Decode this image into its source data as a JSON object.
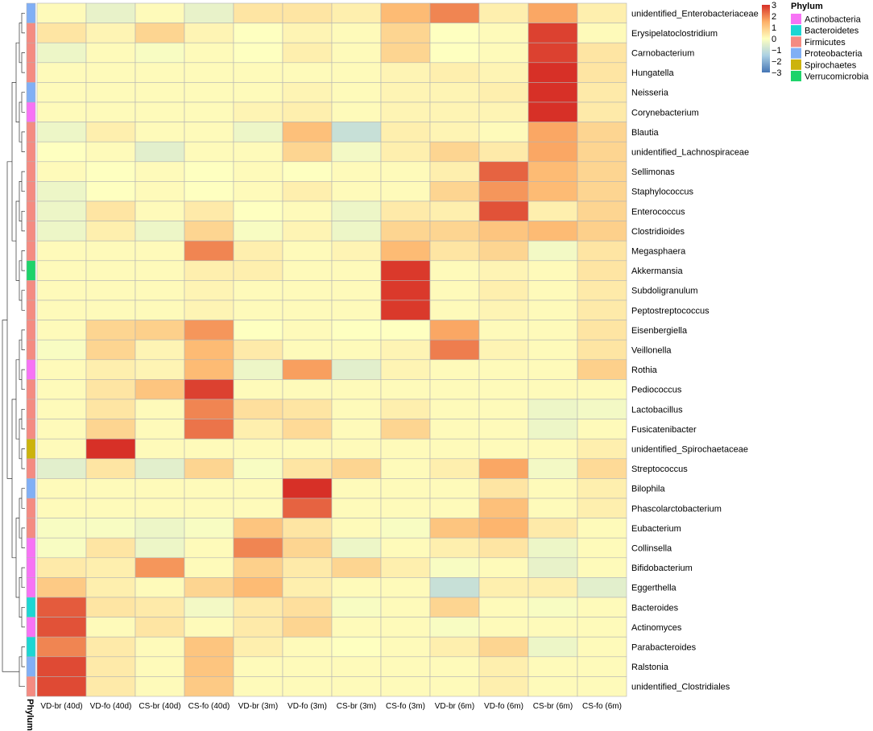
{
  "chart_data": {
    "type": "heatmap",
    "columns": [
      "VD-br (40d)",
      "VD-fo (40d)",
      "CS-br (40d)",
      "CS-fo (40d)",
      "VD-br (3m)",
      "VD-fo (3m)",
      "CS-br (3m)",
      "CS-fo (3m)",
      "VD-br (6m)",
      "VD-fo (6m)",
      "CS-br (6m)",
      "CS-fo (6m)"
    ],
    "rows": [
      {
        "name": "unidentified_Enterobacteriaceae",
        "phylum": "Proteobacteria",
        "values": [
          0.1,
          -0.4,
          0.1,
          -0.4,
          0.5,
          0.5,
          0.3,
          1.3,
          2.0,
          0.3,
          1.6,
          0.3
        ]
      },
      {
        "name": "Erysipelatoclostridium",
        "phylum": "Firmicutes",
        "values": [
          0.5,
          0.2,
          0.8,
          0.2,
          0.0,
          0.2,
          0.1,
          0.8,
          0.0,
          0.1,
          2.8,
          0.1
        ]
      },
      {
        "name": "Carnobacterium",
        "phylum": "Firmicutes",
        "values": [
          -0.3,
          0.1,
          -0.1,
          0.1,
          0.0,
          0.3,
          0.1,
          0.8,
          0.0,
          0.1,
          2.8,
          0.5
        ]
      },
      {
        "name": "Hungatella",
        "phylum": "Firmicutes",
        "values": [
          0.1,
          0.1,
          0.1,
          0.1,
          0.1,
          0.1,
          0.1,
          0.2,
          0.3,
          0.2,
          3.0,
          0.5
        ]
      },
      {
        "name": "Neisseria",
        "phylum": "Proteobacteria",
        "values": [
          0.1,
          0.1,
          0.1,
          0.1,
          0.1,
          0.2,
          0.1,
          0.2,
          0.2,
          0.3,
          3.0,
          0.4
        ]
      },
      {
        "name": "Corynebacterium",
        "phylum": "Actinobacteria",
        "values": [
          0.1,
          0.1,
          0.1,
          0.1,
          0.2,
          0.3,
          0.1,
          0.2,
          0.2,
          0.2,
          3.0,
          0.4
        ]
      },
      {
        "name": "Blautia",
        "phylum": "Firmicutes",
        "values": [
          -0.3,
          0.3,
          0.1,
          0.1,
          -0.3,
          1.2,
          -1.0,
          0.3,
          0.2,
          0.1,
          1.6,
          0.8
        ]
      },
      {
        "name": "unidentified_Lachnospiraceae",
        "phylum": "Firmicutes",
        "values": [
          0.0,
          0.1,
          -0.5,
          0.1,
          0.1,
          0.8,
          -0.2,
          0.3,
          0.8,
          0.4,
          1.6,
          0.8
        ]
      },
      {
        "name": "Sellimonas",
        "phylum": "Firmicutes",
        "values": [
          0.1,
          0.0,
          0.1,
          0.0,
          0.1,
          0.0,
          0.1,
          0.1,
          0.3,
          2.4,
          1.3,
          0.8
        ]
      },
      {
        "name": "Staphylococcus",
        "phylum": "Firmicutes",
        "values": [
          -0.3,
          0.0,
          0.1,
          0.0,
          0.1,
          0.3,
          0.1,
          0.1,
          0.8,
          1.8,
          1.3,
          0.8
        ]
      },
      {
        "name": "Enterococcus",
        "phylum": "Firmicutes",
        "values": [
          -0.3,
          0.5,
          0.1,
          0.4,
          0.0,
          0.1,
          -0.3,
          0.4,
          0.3,
          2.6,
          0.3,
          0.8
        ]
      },
      {
        "name": "Clostridioides",
        "phylum": "Firmicutes",
        "values": [
          -0.3,
          0.3,
          -0.3,
          0.8,
          -0.1,
          0.2,
          -0.3,
          0.8,
          0.8,
          1.1,
          1.3,
          0.9
        ]
      },
      {
        "name": "Megasphaera",
        "phylum": "Firmicutes",
        "values": [
          0.1,
          0.1,
          0.1,
          2.0,
          0.3,
          0.1,
          0.2,
          1.3,
          0.5,
          0.8,
          -0.2,
          0.5
        ]
      },
      {
        "name": "Akkermansia",
        "phylum": "Verrucomicrobia",
        "values": [
          0.1,
          0.1,
          0.1,
          0.3,
          0.3,
          0.1,
          0.1,
          2.9,
          0.1,
          0.2,
          0.1,
          0.5
        ]
      },
      {
        "name": "Subdoligranulum",
        "phylum": "Firmicutes",
        "values": [
          0.1,
          0.1,
          0.1,
          0.2,
          0.1,
          0.1,
          0.1,
          2.9,
          0.1,
          0.3,
          0.1,
          0.4
        ]
      },
      {
        "name": "Peptostreptococcus",
        "phylum": "Firmicutes",
        "values": [
          0.1,
          0.1,
          0.1,
          0.2,
          0.1,
          0.1,
          0.1,
          2.9,
          0.1,
          0.2,
          0.1,
          0.4
        ]
      },
      {
        "name": "Eisenbergiella",
        "phylum": "Firmicutes",
        "values": [
          0.1,
          0.8,
          0.9,
          1.8,
          0.0,
          0.1,
          0.0,
          0.0,
          1.6,
          0.1,
          0.1,
          0.5
        ]
      },
      {
        "name": "Veillonella",
        "phylum": "Firmicutes",
        "values": [
          -0.1,
          0.8,
          0.2,
          1.3,
          0.4,
          0.1,
          0.1,
          0.2,
          2.1,
          0.2,
          0.1,
          0.5
        ]
      },
      {
        "name": "Rothia",
        "phylum": "Actinobacteria",
        "values": [
          0.1,
          0.3,
          0.2,
          1.3,
          -0.3,
          1.7,
          -0.5,
          0.2,
          0.1,
          0.1,
          0.1,
          0.9
        ]
      },
      {
        "name": "Pediococcus",
        "phylum": "Firmicutes",
        "values": [
          0.1,
          0.5,
          1.1,
          2.8,
          0.1,
          0.1,
          0.1,
          0.1,
          0.1,
          0.1,
          0.1,
          0.1
        ]
      },
      {
        "name": "Lactobacillus",
        "phylum": "Firmicutes",
        "values": [
          0.1,
          0.5,
          0.1,
          2.0,
          0.6,
          0.5,
          0.1,
          0.3,
          0.1,
          0.1,
          -0.3,
          -0.2
        ]
      },
      {
        "name": "Fusicatenibacter",
        "phylum": "Firmicutes",
        "values": [
          0.1,
          0.8,
          0.1,
          2.2,
          0.3,
          0.7,
          0.1,
          0.8,
          0.1,
          0.1,
          -0.3,
          0.1
        ]
      },
      {
        "name": "unidentified_Spirochaetaceae",
        "phylum": "Spirochaetes",
        "values": [
          0.1,
          3.0,
          0.1,
          0.1,
          0.1,
          0.1,
          0.1,
          0.1,
          0.1,
          0.1,
          0.1,
          0.3
        ]
      },
      {
        "name": "Streptococcus",
        "phylum": "Firmicutes",
        "values": [
          -0.5,
          0.5,
          -0.5,
          0.8,
          -0.1,
          0.5,
          0.8,
          0.1,
          0.3,
          1.6,
          -0.2,
          0.7
        ]
      },
      {
        "name": "Bilophila",
        "phylum": "Proteobacteria",
        "values": [
          0.1,
          0.1,
          0.1,
          0.1,
          0.1,
          3.0,
          0.1,
          0.1,
          0.1,
          0.5,
          0.1,
          0.3
        ]
      },
      {
        "name": "Phascolarctobacterium",
        "phylum": "Firmicutes",
        "values": [
          0.1,
          0.1,
          0.1,
          0.1,
          0.1,
          2.4,
          0.1,
          0.1,
          0.1,
          1.2,
          0.1,
          0.3
        ]
      },
      {
        "name": "Eubacterium",
        "phylum": "Firmicutes",
        "values": [
          -0.1,
          -0.1,
          -0.3,
          -0.1,
          1.1,
          0.5,
          0.1,
          -0.1,
          1.1,
          1.4,
          0.4,
          0.1
        ]
      },
      {
        "name": "Collinsella",
        "phylum": "Actinobacteria",
        "values": [
          -0.1,
          0.5,
          -0.3,
          0.1,
          2.0,
          0.8,
          -0.3,
          0.1,
          0.3,
          0.5,
          -0.3,
          0.1
        ]
      },
      {
        "name": "Bifidobacterium",
        "phylum": "Actinobacteria",
        "values": [
          0.4,
          0.3,
          1.8,
          0.1,
          0.9,
          0.4,
          0.8,
          0.3,
          -0.1,
          0.1,
          -0.4,
          0.1
        ]
      },
      {
        "name": "Eggerthella",
        "phylum": "Actinobacteria",
        "values": [
          1.0,
          0.3,
          0.1,
          0.8,
          1.3,
          0.3,
          0.1,
          0.1,
          -1.0,
          0.3,
          0.3,
          -0.5
        ]
      },
      {
        "name": "Bacteroides",
        "phylum": "Bacteroidetes",
        "values": [
          2.5,
          0.5,
          0.4,
          -0.2,
          0.4,
          0.6,
          -0.1,
          0.1,
          0.8,
          0.1,
          -0.1,
          0.1
        ]
      },
      {
        "name": "Actinomyces",
        "phylum": "Actinobacteria",
        "values": [
          2.6,
          0.1,
          0.5,
          0.1,
          0.4,
          0.8,
          0.1,
          0.1,
          -0.1,
          0.1,
          0.1,
          0.1
        ]
      },
      {
        "name": "Parabacteroides",
        "phylum": "Bacteroidetes",
        "values": [
          2.0,
          0.4,
          0.1,
          1.1,
          0.3,
          0.1,
          0.0,
          0.1,
          0.3,
          0.8,
          -0.3,
          0.1
        ]
      },
      {
        "name": "Ralstonia",
        "phylum": "Proteobacteria",
        "values": [
          2.7,
          0.4,
          0.1,
          1.1,
          0.1,
          0.1,
          0.1,
          0.1,
          0.1,
          0.3,
          0.1,
          0.1
        ]
      },
      {
        "name": "unidentified_Clostridiales",
        "phylum": "Firmicutes",
        "values": [
          2.7,
          0.4,
          0.1,
          1.0,
          0.1,
          0.1,
          0.1,
          0.1,
          0.1,
          0.3,
          0.1,
          0.1
        ]
      }
    ],
    "color_scale": {
      "min": -3,
      "max": 3,
      "ticks": [
        3,
        2,
        1,
        0,
        -1,
        -2,
        -3
      ],
      "colors": [
        "#4575b4",
        "#abd0e3",
        "#feffc0",
        "#fdb068",
        "#d73027"
      ]
    },
    "annotation": {
      "title": "Phylum",
      "axis_label": "Phylum",
      "legend": [
        {
          "name": "Actinobacteria",
          "color": "#f773f5"
        },
        {
          "name": "Bacteroidetes",
          "color": "#1cd6d3"
        },
        {
          "name": "Firmicutes",
          "color": "#f48b82"
        },
        {
          "name": "Proteobacteria",
          "color": "#81aff5"
        },
        {
          "name": "Spirochaetes",
          "color": "#ccb30d"
        },
        {
          "name": "Verrucomicrobia",
          "color": "#1ed36a"
        }
      ]
    },
    "dendrogram": "rows clustered (hierarchical)"
  }
}
